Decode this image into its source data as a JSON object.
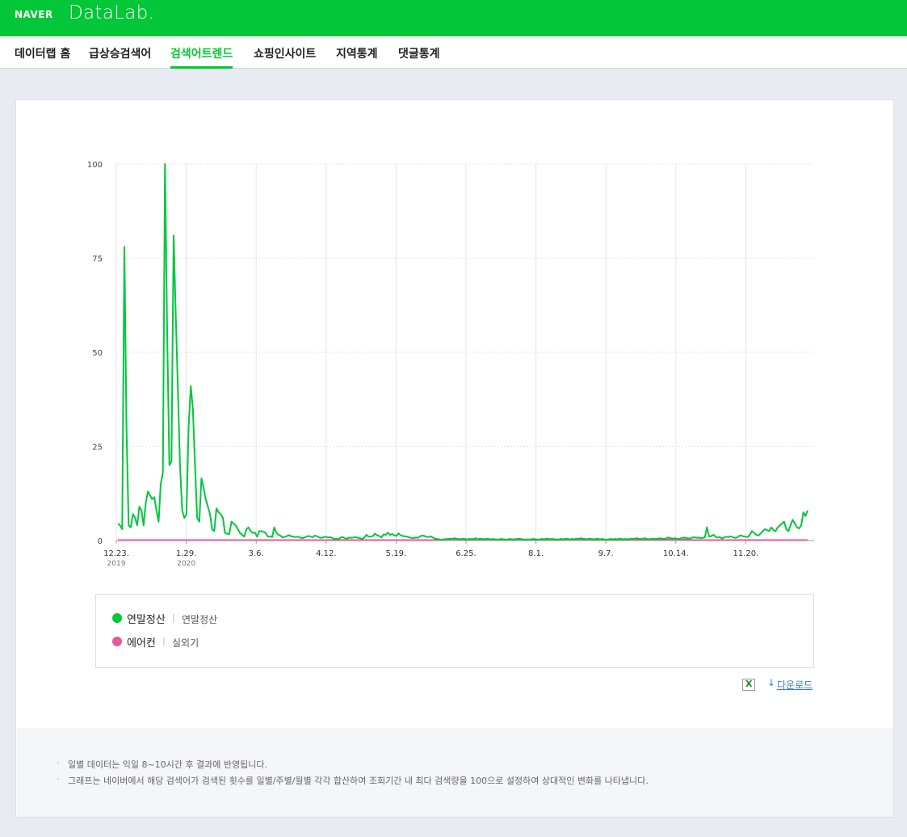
{
  "header": {
    "logo_naver": "NAVER",
    "logo_datalab": "DataLab."
  },
  "nav": {
    "items": [
      {
        "label": "데이터랩 홈",
        "active": false
      },
      {
        "label": "급상승검색어",
        "active": false
      },
      {
        "label": "검색어트렌드",
        "active": true
      },
      {
        "label": "쇼핑인사이트",
        "active": false
      },
      {
        "label": "지역통계",
        "active": false
      },
      {
        "label": "댓글통계",
        "active": false
      }
    ]
  },
  "colors": {
    "brand": "#03c738",
    "series_1": "#00c73c",
    "series_2": "#e7579b"
  },
  "chart_data": {
    "type": "line",
    "ylim": [
      0,
      100
    ],
    "yticks": [
      "100",
      "75",
      "50",
      "25",
      "0"
    ],
    "xticks": [
      {
        "label": "12.23.",
        "year": "2019"
      },
      {
        "label": "1.29.",
        "year": "2020"
      },
      {
        "label": "3.6.",
        "year": ""
      },
      {
        "label": "4.12.",
        "year": ""
      },
      {
        "label": "5.19.",
        "year": ""
      },
      {
        "label": "6.25.",
        "year": ""
      },
      {
        "label": "8.1.",
        "year": ""
      },
      {
        "label": "9.7.",
        "year": ""
      },
      {
        "label": "10.14.",
        "year": ""
      },
      {
        "label": "11.20.",
        "year": ""
      }
    ],
    "grid": true,
    "series": [
      {
        "name": "연말정산",
        "keyword": "연말정산",
        "color": "#00c73c",
        "values": [
          4.5,
          4,
          3,
          78,
          30,
          4,
          3.5,
          7,
          6,
          4,
          9,
          8,
          4,
          10,
          13,
          12,
          11,
          11.5,
          8,
          5,
          15,
          18,
          100,
          55,
          20,
          21,
          81,
          60,
          40,
          20,
          8,
          6,
          7,
          30,
          41,
          35,
          20,
          6,
          5,
          16.5,
          14,
          11,
          9,
          7,
          3,
          2.5,
          8.5,
          7.5,
          7,
          6,
          2,
          1.8,
          1.7,
          5,
          4.5,
          4,
          3,
          2,
          1.5,
          1,
          3,
          3.5,
          2.5,
          2,
          2.1,
          1,
          2.5,
          2.5,
          2.3,
          2,
          1,
          1.1,
          0.9,
          3.5,
          2,
          1.5,
          1.2,
          0.8,
          1,
          1.2,
          1.4,
          1.1,
          1,
          0.9,
          1,
          0.8,
          0.6,
          0.8,
          1,
          1.2,
          1,
          0.9,
          1.3,
          1.1,
          0.8,
          0.7,
          0.9,
          1,
          0.8,
          0.9,
          0.7,
          0.3,
          0.5,
          0.3,
          0.8,
          0.9,
          0.6,
          0.5,
          0.8,
          0.7,
          0.8,
          0.9,
          0.7,
          0.6,
          0.4,
          0.7,
          1.5,
          1,
          1,
          1.2,
          1.8,
          1.4,
          1.2,
          0.8,
          1.6,
          1.5,
          2.1,
          1.5,
          1.7,
          1.4,
          1.2,
          1.9,
          1.4,
          1.2,
          1.1,
          1,
          0.8,
          0.7,
          0.6,
          0.8,
          0.7,
          1.1,
          1.3,
          1.2,
          1,
          0.9,
          1.1,
          0.8,
          0.5,
          0.4,
          0.3,
          0.2,
          0.3,
          0.2,
          0.4,
          0.5,
          0.4,
          0.6,
          0.5,
          0.4,
          0.3,
          0.5,
          0.4,
          0.3,
          0.4,
          0.3,
          0.4,
          0.6,
          0.3,
          0.5,
          0.4,
          0.3,
          0.5,
          0.4,
          0.3,
          0.4,
          0.3,
          0.2,
          0.3,
          0.4,
          0.3,
          0.2,
          0.3,
          0.4,
          0.3,
          0.2,
          0.3,
          0.5,
          0.4,
          0.3,
          0.2,
          0.3,
          0.2,
          0.3,
          0.4,
          0.3,
          0.2,
          0.3,
          0.4,
          0.3,
          0.5,
          0.4,
          0.3,
          0.4,
          0.3,
          0.2,
          0.3,
          0.4,
          0.3,
          0.5,
          0.4,
          0.3,
          0.4,
          0.3,
          0.5,
          0.4,
          0.6,
          0.5,
          0.4,
          0.3,
          0.5,
          0.4,
          0.3,
          0.4,
          0.5,
          0.3,
          0.4,
          0.3,
          0.2,
          0.3,
          0.4,
          0.3,
          0.4,
          0.3,
          0.5,
          0.4,
          0.3,
          0.4,
          0.3,
          0.4,
          0.5,
          0.4,
          0.6,
          0.5,
          0.4,
          0.5,
          0.6,
          0.4,
          0.3,
          0.5,
          0.4,
          0.5,
          0.4,
          0.6,
          0.5,
          0.4,
          0.6,
          0.8,
          0.6,
          0.5,
          0.6,
          0.5,
          0.4,
          0.6,
          0.8,
          0.7,
          0.6,
          0.5,
          0.7,
          0.9,
          0.7,
          0.8,
          0.6,
          0.7,
          0.8,
          3.5,
          1,
          1.2,
          1.5,
          1,
          0.8,
          0.9,
          0.5,
          0.8,
          1,
          0.9,
          1.1,
          0.9,
          0.7,
          0.8,
          1.2,
          1.3,
          1.1,
          1,
          0.9,
          1.5,
          2.5,
          2,
          1.5,
          1.3,
          1.8,
          2.5,
          3,
          2.8,
          2.5,
          3.5,
          2.8,
          2.5,
          3.5,
          4,
          4.5,
          5,
          3,
          2.5,
          4,
          5.5,
          4.5,
          3.5,
          3.2,
          4,
          7.5,
          6.5,
          8
        ]
      },
      {
        "name": "에어컨",
        "keyword": "실외기",
        "color": "#e7579b",
        "values": [
          0.1,
          0.1,
          0.1,
          0.1,
          0.1,
          0.1,
          0.1,
          0.1,
          0.1,
          0.1,
          0.1,
          0.1,
          0.1,
          0.1,
          0.1,
          0.1,
          0.1,
          0.1,
          0.1,
          0.1,
          0.1,
          0.1,
          0.1,
          0.1,
          0.1,
          0.1,
          0.1,
          0.1,
          0.1,
          0.1,
          0.1,
          0.1,
          0.1,
          0.1,
          0.1,
          0.1,
          0.1,
          0.1,
          0.1,
          0.1,
          0.1,
          0.1,
          0.1,
          0.1,
          0.1,
          0.1,
          0.1,
          0.1,
          0.1,
          0.1,
          0.1,
          0.1,
          0.1,
          0.1,
          0.1,
          0.1,
          0.1,
          0.1,
          0.1,
          0.1,
          0.1,
          0.1,
          0.1,
          0.1,
          0.1,
          0.1,
          0.1,
          0.1,
          0.1,
          0.1,
          0.1,
          0.1,
          0.1,
          0.1,
          0.1,
          0.1,
          0.1,
          0.1,
          0.1,
          0.1,
          0.1,
          0.1,
          0.1,
          0.1,
          0.1,
          0.1,
          0.1,
          0.1,
          0.1,
          0.1,
          0.1,
          0.1,
          0.1,
          0.1,
          0.1,
          0.1,
          0.1,
          0.1,
          0.1,
          0.1,
          0.1,
          0.1,
          0.1,
          0.1,
          0.1,
          0.1,
          0.1,
          0.1,
          0.1,
          0.1,
          0.1,
          0.1,
          0.1,
          0.1,
          0.1,
          0.1,
          0.1,
          0.1,
          0.1,
          0.1,
          0.1,
          0.1,
          0.1,
          0.1,
          0.1,
          0.1,
          0.1,
          0.1,
          0.1,
          0.1,
          0.1,
          0.1,
          0.1,
          0.1,
          0.1,
          0.1,
          0.1,
          0.1,
          0.1,
          0.1,
          0.1,
          0.1,
          0.1,
          0.1,
          0.1,
          0.1,
          0.1,
          0.1,
          0.1,
          0.1,
          0.1,
          0.1,
          0.1,
          0.1,
          0.1,
          0.1,
          0.1,
          0.1,
          0.1,
          0.1,
          0.1,
          0.2,
          0.3,
          0.2,
          0.3,
          0.4,
          0.3,
          0.2,
          0.4,
          0.3,
          0.2,
          0.3,
          0.2,
          0.3,
          0.2,
          0.3,
          0.2,
          0.3,
          0.4,
          0.3,
          0.2,
          0.3,
          0.2,
          0.3,
          0.2,
          0.3,
          0.2,
          0.3,
          0.2,
          0.3,
          0.2,
          0.3,
          0.2,
          0.3,
          0.2,
          0.3,
          0.2,
          0.3,
          0.2,
          0.3,
          0.4,
          0.3,
          0.2,
          0.3,
          0.2,
          0.3,
          0.2,
          0.3,
          0.2,
          0.3,
          0.2,
          0.3,
          0.2,
          0.3,
          0.2,
          0.3,
          0.2,
          0.3,
          0.4,
          0.3,
          0.2,
          0.3,
          0.2,
          0.3,
          0.2,
          0.3,
          0.2,
          0.3,
          0.2,
          0.3,
          0.2,
          0.3,
          0.2,
          0.3,
          0.2,
          0.3,
          0.2,
          0.3,
          0.2,
          0.3,
          0.2,
          0.3,
          0.2,
          0.3,
          0.2,
          0.3,
          0.2,
          0.3,
          0.2,
          0.3,
          0.2,
          0.3,
          0.2,
          0.3,
          0.2,
          0.3,
          0.2,
          0.3,
          0.2,
          0.3,
          0.2,
          0.3,
          0.2,
          0.3,
          0.2,
          0.3,
          0.2,
          0.3,
          0.2,
          0.3,
          0.2,
          0.3,
          0.2,
          0.3,
          0.2,
          0.3,
          0.2,
          0.3,
          0.2,
          0.3,
          0.2,
          0.3,
          0.2,
          0.3,
          0.2,
          0.3,
          0.2,
          0.3,
          0.2,
          0.1,
          0.1,
          0.1,
          0.1,
          0.1,
          0.1,
          0.1,
          0.1,
          0.1,
          0.1,
          0.1,
          0.1,
          0.1,
          0.1,
          0.1,
          0.1,
          0.1,
          0.1,
          0.1,
          0.1,
          0.1,
          0.1,
          0.1,
          0.1,
          0.1,
          0.1,
          0.1,
          0.1,
          0.1,
          0.1,
          0.1,
          0.1,
          0.1,
          0.1,
          0.1,
          0.1,
          0.1,
          0.1,
          0.1,
          0.1,
          0.1,
          0.1,
          0.1,
          0.1,
          0.1,
          0.1,
          0.1,
          0.1,
          0.1,
          0.1,
          0.1,
          0.1,
          0.1,
          0.1,
          0.1,
          0.1,
          0.1,
          0.1,
          0.1
        ]
      }
    ]
  },
  "download": {
    "excel_icon": "excel-icon",
    "arrow": "↓",
    "label": "다운로드"
  },
  "notes": [
    "일별 데이터는 익일 8~10시간 후 결과에 반영됩니다.",
    "그래프는 네이버에서 해당 검색어가 검색된 횟수를 일별/주별/월별 각각 합산하여 조회기간 내 최다 검색량을 100으로 설정하여 상대적인 변화를 나타냅니다."
  ]
}
